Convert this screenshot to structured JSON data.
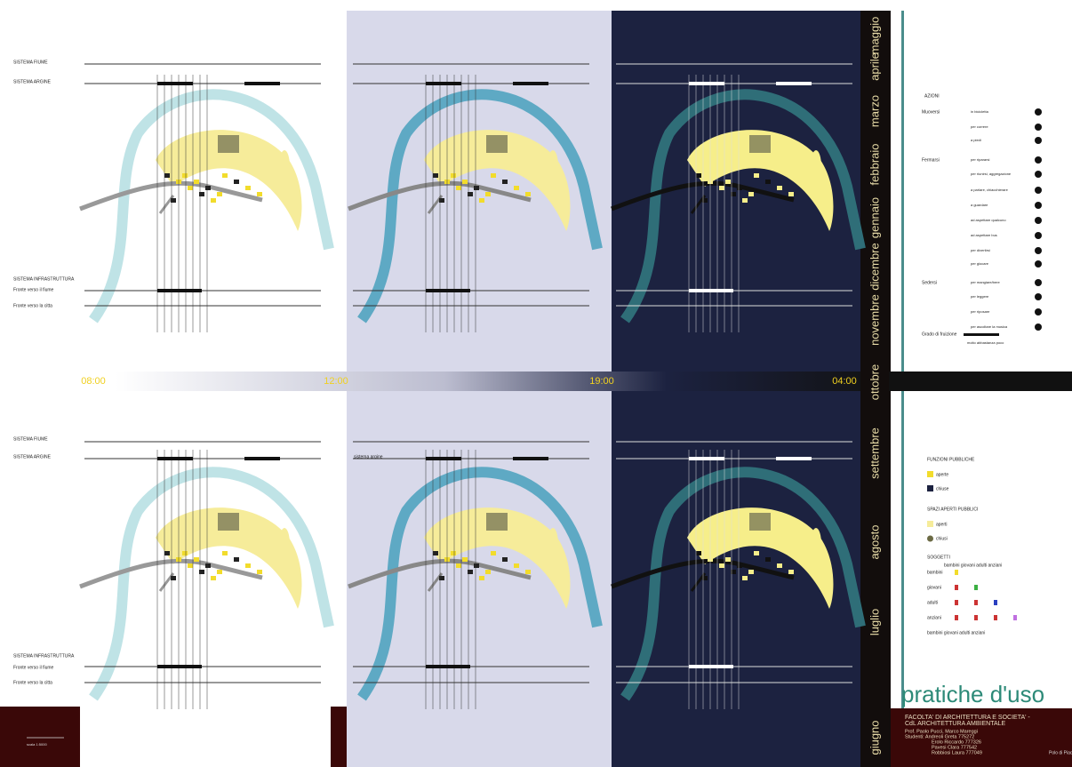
{
  "system_labels_top": [
    "SISTEMA FIUME",
    "SISTEMA ARGINE",
    "SISTEMA INFRASTRUTTURA",
    "Fronte verso il fiume",
    "Fronte verso la citta"
  ],
  "system_labels_bottom": [
    "SISTEMA FIUME",
    "SISTEMA ARGINE",
    "SISTEMA INFRASTRUTTURA",
    "Fronte verso il fiume",
    "Fronte verso la citta"
  ],
  "argine_small": "sistema argine",
  "times": [
    "08:00",
    "12:00",
    "19:00",
    "04:00"
  ],
  "months": [
    "maggio",
    "aprile",
    "marzo",
    "febbraio",
    "gennaio",
    "dicembre",
    "novembre",
    "ottobre",
    "settembre",
    "agosto",
    "luglio",
    "giugno"
  ],
  "legend": {
    "title": "AZIONI",
    "groups": [
      {
        "name": "Muoversi",
        "items": [
          "in bicicletta",
          "per correre",
          "a piedi"
        ]
      },
      {
        "name": "Fermarsi",
        "items": [
          "per ripararsi",
          "per riunirsi, aggregazione",
          "a parlare, chiacchierare",
          "a guardare",
          "ad aspettare qualcuno",
          "ad aspettare bus",
          "per divertirsi",
          "per giocare"
        ]
      },
      {
        "name": "Sedersi",
        "items": [
          "per mangiare/bere",
          "per leggere",
          "per riposare",
          "per ascoltare la musica"
        ]
      }
    ],
    "fruizione": "Grado di fruizione",
    "fruizione_scale": "molto  abbastanza  poco",
    "funzioni": {
      "title": "FUNZIONI PUBBLICHE",
      "items": [
        "aperte",
        "chiuse"
      ]
    },
    "spazi": {
      "title": "SPAZI APERTI PUBBLICI",
      "items": [
        "aperti",
        "chiusi"
      ]
    },
    "soggetti": {
      "title": "SOGGETTI",
      "header": "bambini  giovani  adulti  anziani",
      "rows": [
        "bambini",
        "giovani",
        "adulti",
        "anziani",
        "bambini giovani adulti anziani"
      ]
    }
  },
  "footer": {
    "title": "pratiche d'uso",
    "lines": [
      "FACOLTA' DI ARCHITETTURA E SOCIETA' -",
      "CdL ARCHITETTURA AMBIENTALE",
      "Prof. Paolo Pucci, Marco Mareggi",
      "Studenti: Andreoli Greta  775272",
      "Erolo Riccardo  777326",
      "Pavesi Clara  777542",
      "Robbiosi Laura  777049"
    ],
    "polo": "Polo di Piacenza",
    "scale": "scala 1:5000"
  }
}
